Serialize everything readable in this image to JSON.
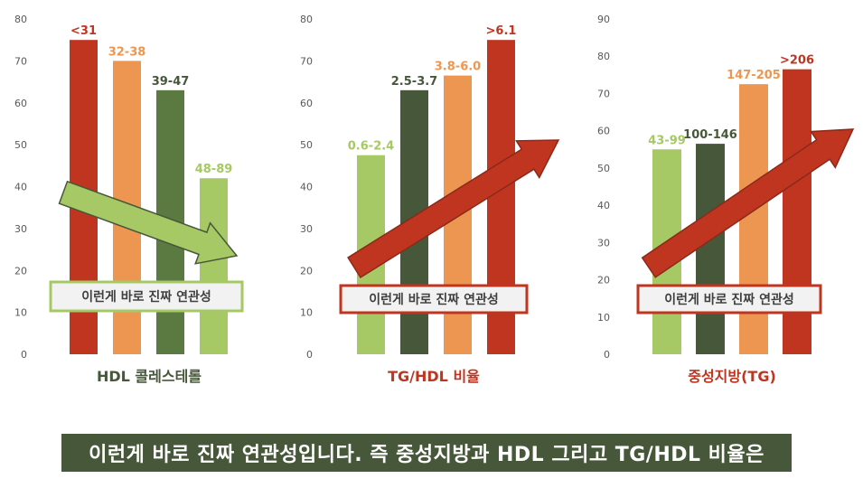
{
  "chart_data": [
    {
      "type": "bar",
      "xlabel": "HDL 콜레스테롤",
      "ylim": [
        0,
        80
      ],
      "yticks": [
        0,
        10,
        20,
        30,
        40,
        50,
        60,
        70,
        80
      ],
      "categories": [
        "<31",
        "32-38",
        "39-47",
        "48-89"
      ],
      "values": [
        75,
        70,
        63,
        42
      ],
      "bar_colors": [
        "#c0351f",
        "#ed9652",
        "#5a7a42",
        "#a6c865"
      ],
      "label_colors": [
        "#c0351f",
        "#ed9652",
        "#46573a",
        "#a6c865"
      ],
      "xlabel_color": "#46573a",
      "arrow": {
        "direction": "down",
        "color": "#a6c865",
        "stroke": "#46573a"
      },
      "callout": {
        "text": "이런게 바로 진짜 연관성",
        "border": "#a6c865"
      }
    },
    {
      "type": "bar",
      "xlabel": "TG/HDL 비율",
      "ylim": [
        0,
        80
      ],
      "yticks": [
        0,
        10,
        20,
        30,
        40,
        50,
        60,
        70,
        80
      ],
      "categories": [
        "0.6-2.4",
        "2.5-3.7",
        "3.8-6.0",
        ">6.1"
      ],
      "values": [
        47.5,
        63,
        66.5,
        75
      ],
      "bar_colors": [
        "#a6c865",
        "#46573a",
        "#ed9652",
        "#c0351f"
      ],
      "label_colors": [
        "#a6c865",
        "#46573a",
        "#ed9652",
        "#c0351f"
      ],
      "xlabel_color": "#c0351f",
      "arrow": {
        "direction": "up",
        "color": "#c0351f",
        "stroke": "#8a2a1a"
      },
      "callout": {
        "text": "이런게 바로 진짜 연관성",
        "border": "#c0351f"
      }
    },
    {
      "type": "bar",
      "xlabel": "중성지방(TG)",
      "ylim": [
        0,
        90
      ],
      "yticks": [
        0,
        10,
        20,
        30,
        40,
        50,
        60,
        70,
        80,
        90
      ],
      "categories": [
        "43-99",
        "100-146",
        "147-205",
        ">206"
      ],
      "values": [
        55,
        56.5,
        72.5,
        76.5
      ],
      "bar_colors": [
        "#a6c865",
        "#46573a",
        "#ed9652",
        "#c0351f"
      ],
      "label_colors": [
        "#a6c865",
        "#46573a",
        "#ed9652",
        "#c0351f"
      ],
      "xlabel_color": "#c0351f",
      "arrow": {
        "direction": "up",
        "color": "#c0351f",
        "stroke": "#8a2a1a"
      },
      "callout": {
        "text": "이런게 바로 진짜 연관성",
        "border": "#c0351f"
      }
    }
  ],
  "subtitle": "이런게 바로 진짜 연관성입니다. 즉 중성지방과 HDL 그리고 TG/HDL 비율은"
}
